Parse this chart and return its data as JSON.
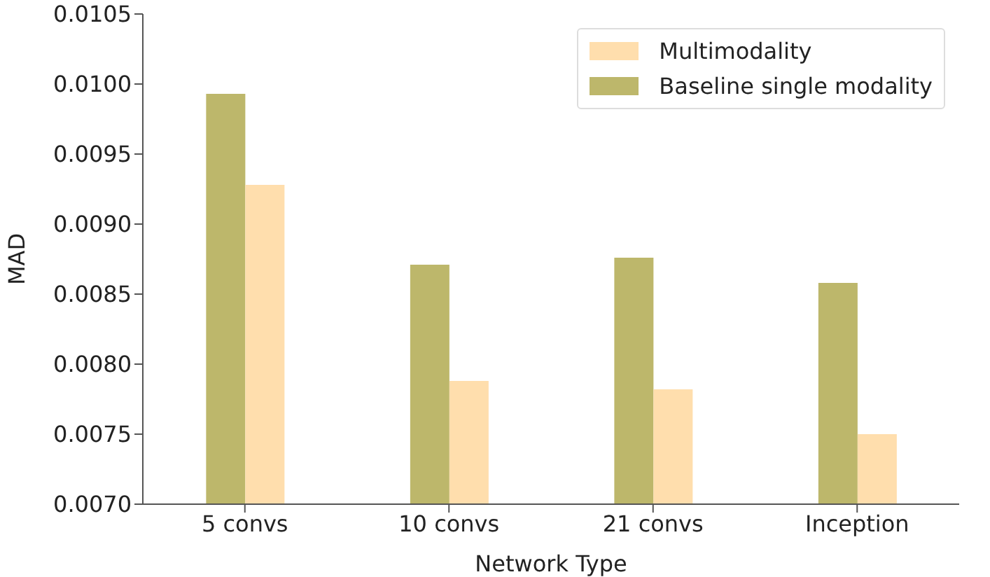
{
  "chart_data": {
    "type": "bar",
    "xlabel": "Network Type",
    "ylabel": "MAD",
    "categories": [
      "5 convs",
      "10 convs",
      "21 convs",
      "Inception"
    ],
    "series": [
      {
        "name": "Baseline single modality",
        "color": "#bdb76b",
        "values": [
          0.00993,
          0.00871,
          0.00876,
          0.00858
        ]
      },
      {
        "name": "Multimodality",
        "color": "#ffdead",
        "values": [
          0.00928,
          0.00788,
          0.00782,
          0.0075
        ]
      }
    ],
    "ylim": [
      0.007,
      0.0105
    ],
    "yticks": [
      {
        "value": 0.007,
        "label": "0.0070"
      },
      0.0075,
      {
        "value": 0.008,
        "label": "0.0080"
      },
      0.0085,
      {
        "value": 0.009,
        "label": "0.0090"
      },
      0.0095,
      {
        "value": 0.01,
        "label": "0.0100"
      },
      0.0105
    ],
    "grid": false,
    "legend": "top right"
  }
}
